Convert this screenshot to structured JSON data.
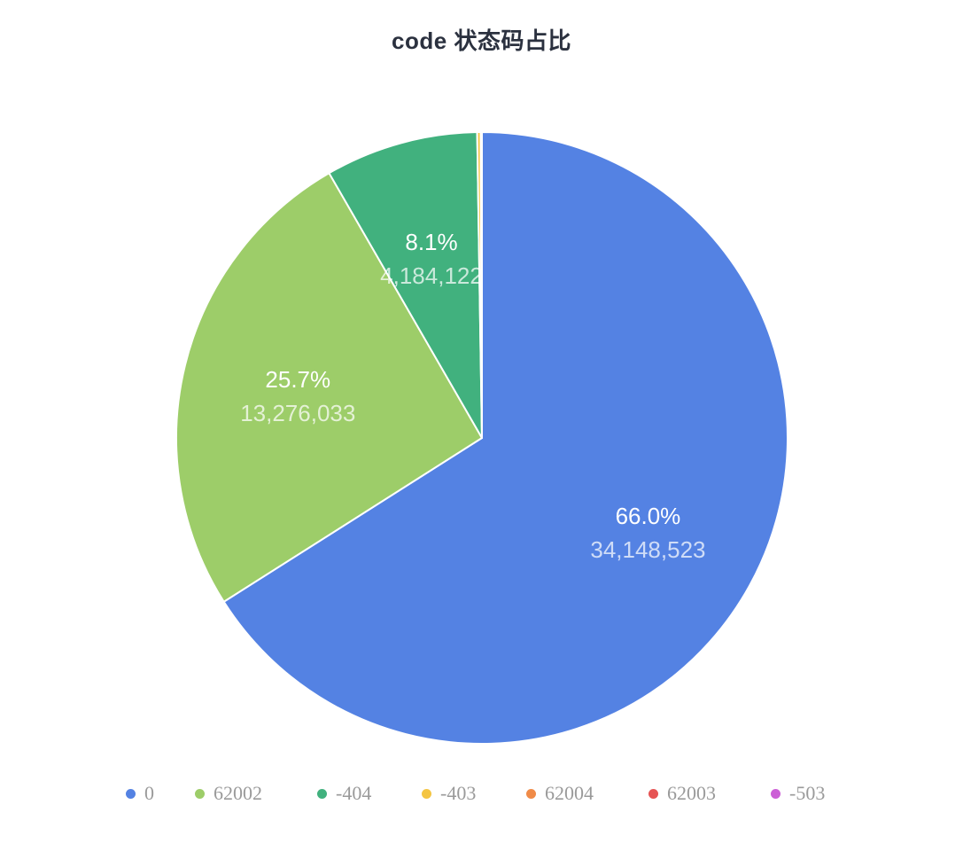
{
  "title": "code 状态码占比",
  "colors": {
    "title": "#2b313f",
    "legend_text": "#9a9a9a",
    "slice_border": "#ffffff"
  },
  "chart_data": {
    "type": "pie",
    "title": "code 状态码占比",
    "legend_position": "bottom",
    "slices": [
      {
        "name": "0",
        "value": 34148523,
        "percent_label": "66.0%",
        "value_label": "34,148,523",
        "color": "#5482e3"
      },
      {
        "name": "62002",
        "value": 13276033,
        "percent_label": "25.7%",
        "value_label": "13,276,033",
        "color": "#9dcd69"
      },
      {
        "name": "-404",
        "value": 4184122,
        "percent_label": "8.1%",
        "value_label": "4,184,122",
        "color": "#41b17e"
      },
      {
        "name": "-403",
        "value": 95000,
        "color": "#f4c543"
      },
      {
        "name": "62004",
        "value": 20000,
        "color": "#f08b48"
      },
      {
        "name": "62003",
        "value": 10000,
        "color": "#e65454"
      },
      {
        "name": "-503",
        "value": 4000,
        "color": "#cc5fd6"
      }
    ]
  }
}
